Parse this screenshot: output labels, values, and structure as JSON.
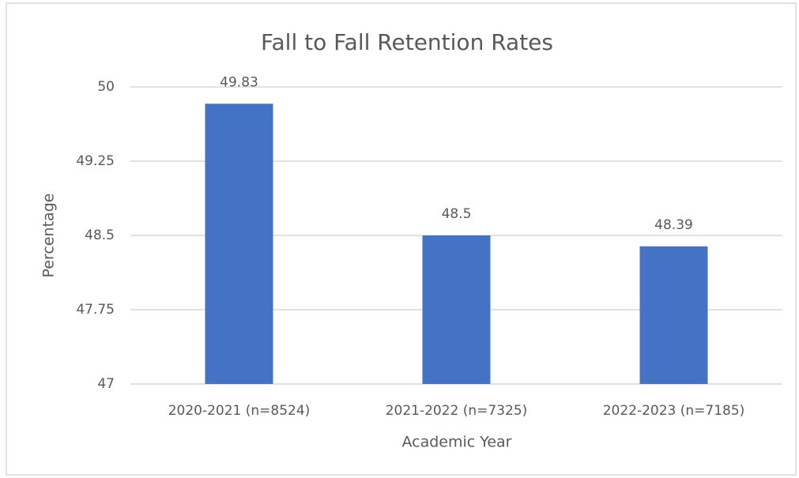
{
  "chart_data": {
    "type": "bar",
    "title": "Fall to Fall Retention Rates",
    "x_label": "Academic Year",
    "y_label": "Percentage",
    "categories": [
      "2020-2021 (n=8524)",
      "2021-2022 (n=7325)",
      "2022-2023 (n=7185)"
    ],
    "values": [
      49.83,
      48.5,
      48.39
    ],
    "color": "#4472c4",
    "ylim": [
      47,
      50
    ],
    "yticks": [
      47,
      47.75,
      48.5,
      49.25,
      50
    ],
    "grid": true,
    "data_labels": true
  }
}
